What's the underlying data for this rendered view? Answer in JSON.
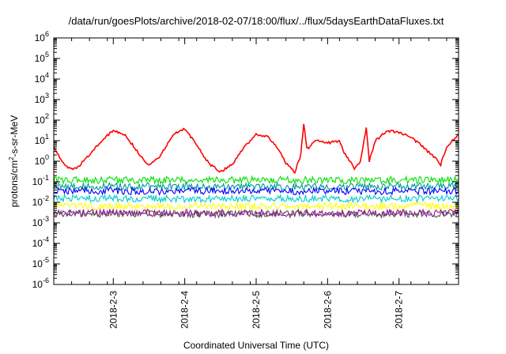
{
  "chart_data": {
    "type": "line",
    "title": "/data/run/goesPlots/archive/2018-02-07/18:00/flux/../flux/5daysEarthDataFluxes.txt",
    "xlabel": "Coordinated Universal Time (UTC)",
    "ylabel_parts": {
      "base": "protons/cm",
      "sup": "2",
      "rest": "-s-sr-MeV"
    },
    "scale": {
      "y": "log"
    },
    "xlim": [
      "2018-02-02T04:00",
      "2018-02-07T20:00"
    ],
    "ylim": [
      1e-06,
      1000000.0
    ],
    "x_ticks": [
      "2018-2-3",
      "2018-2-4",
      "2018-2-5",
      "2018-2-6",
      "2018-2-7"
    ],
    "y_ticks": [
      {
        "base": "10",
        "exp": "-6",
        "value": 1e-06
      },
      {
        "base": "10",
        "exp": "-5",
        "value": 1e-05
      },
      {
        "base": "10",
        "exp": "-4",
        "value": 0.0001
      },
      {
        "base": "10",
        "exp": "-3",
        "value": 0.001
      },
      {
        "base": "10",
        "exp": "-2",
        "value": 0.01
      },
      {
        "base": "10",
        "exp": "-1",
        "value": 0.1
      },
      {
        "base": "10",
        "exp": "0",
        "value": 1
      },
      {
        "base": "10",
        "exp": "1",
        "value": 10
      },
      {
        "base": "10",
        "exp": "2",
        "value": 100
      },
      {
        "base": "10",
        "exp": "3",
        "value": 1000
      },
      {
        "base": "10",
        "exp": "4",
        "value": 10000
      },
      {
        "base": "10",
        "exp": "5",
        "value": 100000
      },
      {
        "base": "10",
        "exp": "6",
        "value": 1000000
      }
    ],
    "grid": false,
    "legend": "none",
    "series": [
      {
        "color": "#ff0000",
        "x": [
          "2018-02-02T04:00",
          "2018-02-02T06:00",
          "2018-02-02T08:00",
          "2018-02-02T10:00",
          "2018-02-02T12:00",
          "2018-02-02T16:00",
          "2018-02-02T20:00",
          "2018-02-03T00:00",
          "2018-02-03T04:00",
          "2018-02-03T08:00",
          "2018-02-03T12:00",
          "2018-02-03T16:00",
          "2018-02-03T20:00",
          "2018-02-04T00:00",
          "2018-02-04T04:00",
          "2018-02-04T08:00",
          "2018-02-04T12:00",
          "2018-02-04T16:00",
          "2018-02-04T20:00",
          "2018-02-05T00:00",
          "2018-02-05T04:00",
          "2018-02-05T08:00",
          "2018-02-05T10:00",
          "2018-02-05T13:00",
          "2018-02-05T15:00",
          "2018-02-05T16:00",
          "2018-02-05T17:00",
          "2018-02-05T18:00",
          "2018-02-05T20:00",
          "2018-02-06T00:00",
          "2018-02-06T04:00",
          "2018-02-06T06:00",
          "2018-02-06T08:00",
          "2018-02-06T09:00",
          "2018-02-06T11:00",
          "2018-02-06T13:00",
          "2018-02-06T14:00",
          "2018-02-06T16:00",
          "2018-02-06T20:00",
          "2018-02-07T00:00",
          "2018-02-07T04:00",
          "2018-02-07T08:00",
          "2018-02-07T12:00",
          "2018-02-07T14:00",
          "2018-02-07T16:00",
          "2018-02-07T20:00"
        ],
        "values": [
          5,
          1.5,
          0.6,
          0.4,
          0.5,
          2,
          10,
          30,
          20,
          3,
          0.6,
          2,
          20,
          40,
          6,
          0.8,
          0.3,
          0.7,
          5,
          20,
          15,
          3,
          0.8,
          0.3,
          2,
          70,
          4,
          5,
          10,
          8,
          9,
          2,
          0.8,
          0.4,
          1,
          40,
          1,
          10,
          30,
          25,
          15,
          5,
          1.5,
          0.7,
          5,
          20
        ]
      },
      {
        "color": "#00e000",
        "x": [
          "2018-02-02T04:00",
          "2018-02-07T20:00"
        ],
        "values": [
          0.12,
          0.12
        ]
      },
      {
        "color": "#009999",
        "x": [
          "2018-02-02T04:00",
          "2018-02-07T20:00"
        ],
        "values": [
          0.06,
          0.06
        ]
      },
      {
        "color": "#0000ff",
        "x": [
          "2018-02-02T04:00",
          "2018-02-07T20:00"
        ],
        "values": [
          0.035,
          0.035
        ]
      },
      {
        "color": "#00cccc",
        "x": [
          "2018-02-02T04:00",
          "2018-02-07T20:00"
        ],
        "values": [
          0.015,
          0.015
        ]
      },
      {
        "color": "#ffff00",
        "x": [
          "2018-02-02T04:00",
          "2018-02-07T20:00"
        ],
        "values": [
          0.0065,
          0.0065
        ]
      },
      {
        "color": "#aa00aa",
        "x": [
          "2018-02-02T04:00",
          "2018-02-07T20:00"
        ],
        "values": [
          0.003,
          0.003
        ]
      },
      {
        "color": "#555555",
        "x": [
          "2018-02-02T04:00",
          "2018-02-07T20:00"
        ],
        "values": [
          0.0027,
          0.0027
        ]
      }
    ]
  }
}
